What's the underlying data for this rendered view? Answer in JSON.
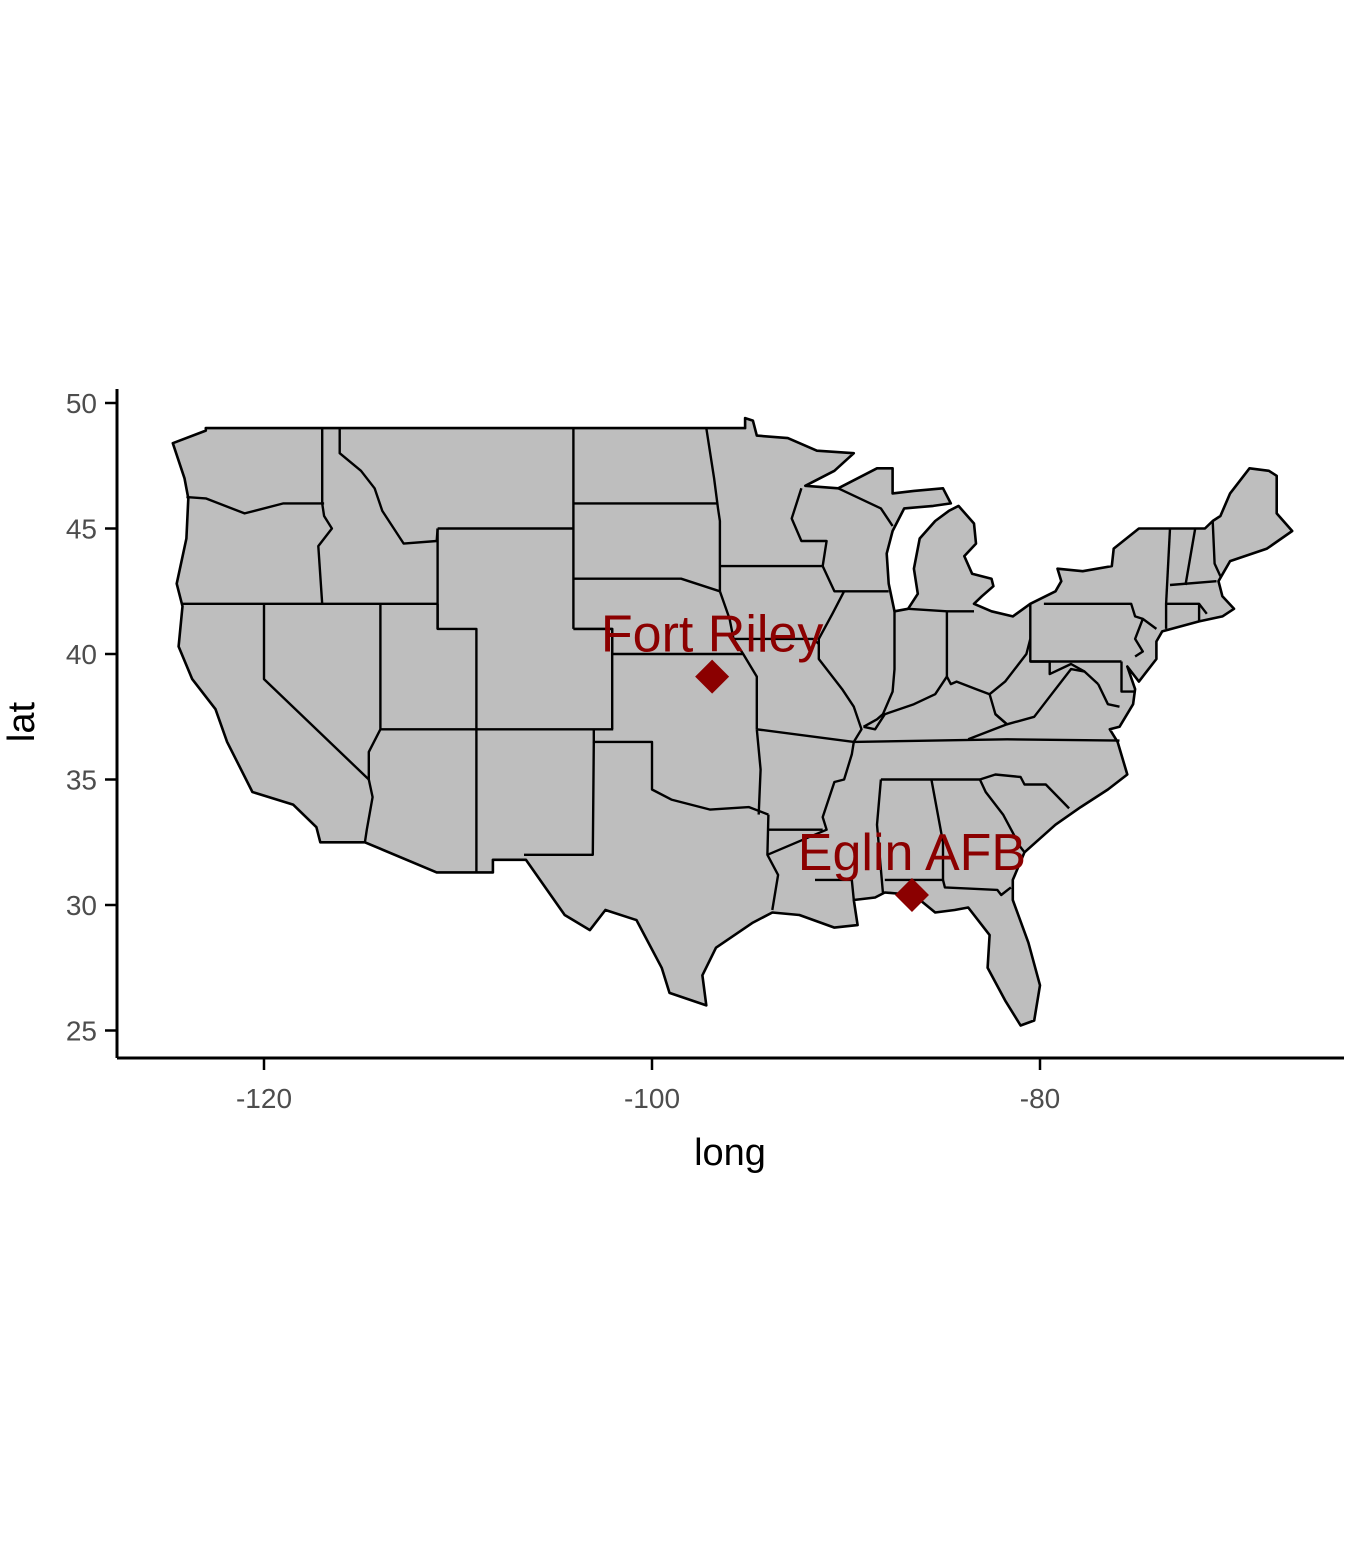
{
  "chart_data": {
    "type": "map",
    "xlabel": "long",
    "ylabel": "lat",
    "xlim": [
      -127.5,
      -64.5
    ],
    "ylim": [
      24.0,
      50.7
    ],
    "x_ticks": [
      {
        "value": -120,
        "label": "-120"
      },
      {
        "value": -100,
        "label": "-100"
      },
      {
        "value": -80,
        "label": "-80"
      }
    ],
    "y_ticks": [
      {
        "value": 25,
        "label": "25"
      },
      {
        "value": 30,
        "label": "30"
      },
      {
        "value": 35,
        "label": "35"
      },
      {
        "value": 40,
        "label": "40"
      },
      {
        "value": 45,
        "label": "45"
      },
      {
        "value": 50,
        "label": "50"
      }
    ],
    "grid": false,
    "map_fill": "#bebebe",
    "map_stroke": "#000000",
    "points": [
      {
        "name": "Fort Riley",
        "long": -96.9,
        "lat": 39.1,
        "shape": "diamond",
        "color": "#8b0000"
      },
      {
        "name": "Eglin AFB",
        "long": -86.6,
        "lat": 30.4,
        "shape": "diamond",
        "color": "#8b0000"
      }
    ]
  }
}
